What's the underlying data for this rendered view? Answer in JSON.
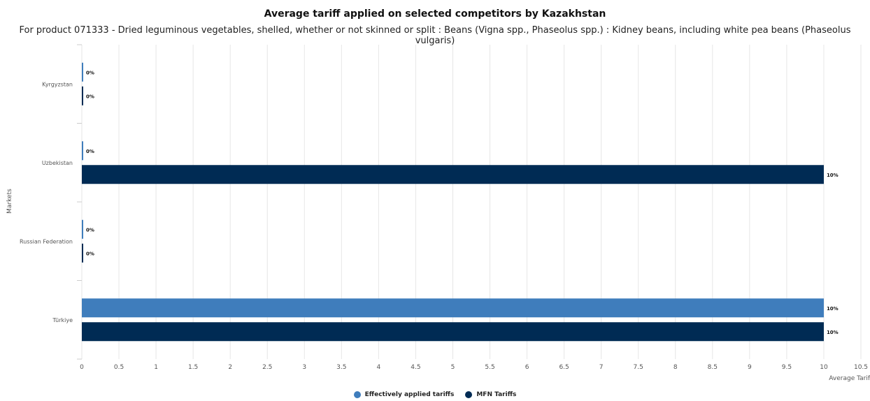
{
  "chart_data": {
    "type": "bar",
    "orientation": "horizontal",
    "title": "Average tariff applied on selected competitors by Kazakhstan",
    "subtitle": "For product 071333 - Dried leguminous vegetables, shelled, whether or not skinned or split : Beans (Vigna spp., Phaseolus spp.) : Kidney beans, including white pea beans (Phaseolus vulgaris)",
    "xlabel": "Average Tarif",
    "ylabel": "Markets",
    "categories": [
      "Kyrgyzstan",
      "Uzbekistan",
      "Russian Federation",
      "Türkiye"
    ],
    "series": [
      {
        "name": "Effectively applied tariffs",
        "color": "#3f7dbc",
        "values": [
          0,
          0,
          0,
          10
        ],
        "labels": [
          "0%",
          "0%",
          "0%",
          "10%"
        ]
      },
      {
        "name": "MFN Tariffs",
        "color": "#002b54",
        "values": [
          0,
          10,
          0,
          10
        ],
        "labels": [
          "0%",
          "10%",
          "0%",
          "10%"
        ]
      }
    ],
    "xlim": [
      0,
      10.5
    ],
    "xticks": [
      "0",
      "0.5",
      "1",
      "1.5",
      "2",
      "2.5",
      "3",
      "3.5",
      "4",
      "4.5",
      "5",
      "5.5",
      "6",
      "6.5",
      "7",
      "7.5",
      "8",
      "8.5",
      "9",
      "9.5",
      "10",
      "10.5"
    ],
    "grid": true,
    "legend_position": "bottom"
  }
}
